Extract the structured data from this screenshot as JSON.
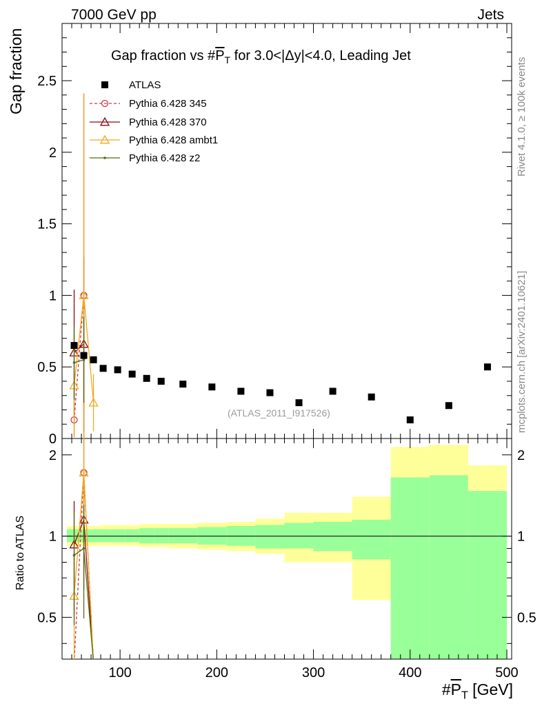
{
  "header": {
    "left_label": "7000 GeV pp",
    "right_label": "Jets"
  },
  "side_labels": {
    "rivet": "Rivet 4.1.0, ≥ 100k events",
    "mcplots": "mcplots.cern.ch [arXiv:2401.10621]"
  },
  "chart_data": {
    "type": "scatter",
    "title": "Gap fraction vs #PT for 3.0<|Δy|<4.0, Leading Jet",
    "title_prefix": "Gap fraction vs #",
    "title_symbol": "P",
    "title_sub": "T",
    "title_suffix": " for 3.0<|Δy|<4.0, Leading Jet",
    "reference_label": "(ATLAS_2011_I917526)",
    "ylabel": "Gap fraction",
    "ratio_ylabel": "Ratio to ATLAS",
    "xlabel_prefix": "#",
    "xlabel_symbol": "P",
    "xlabel_sub": "T",
    "xlabel_suffix": " [GeV]",
    "xlim": [
      40,
      505
    ],
    "ylim": [
      0,
      2.9
    ],
    "ratio_ylim": [
      0.35,
      2.3
    ],
    "x_ticks": [
      100,
      200,
      300,
      400,
      500
    ],
    "x_tick_labels": [
      "100",
      "200",
      "300",
      "400",
      "500"
    ],
    "y_ticks": [
      0,
      0.5,
      1,
      1.5,
      2,
      2.5
    ],
    "y_tick_labels": [
      "0",
      "0.5",
      "1",
      "1.5",
      "2",
      "2.5"
    ],
    "ratio_ticks": [
      0.5,
      1,
      2
    ],
    "ratio_tick_labels": [
      "0.5",
      "1",
      "2"
    ],
    "legend": [
      "ATLAS",
      "Pythia 6.428 345",
      "Pythia 6.428 370",
      "Pythia 6.428 ambt1",
      "Pythia 6.428 z2"
    ],
    "data": {
      "name": "ATLAS",
      "x": [
        52.5,
        62.5,
        72.5,
        82.5,
        97.5,
        112.5,
        127.5,
        142.5,
        165,
        195,
        225,
        255,
        285,
        320,
        360,
        400,
        440,
        480
      ],
      "y": [
        0.65,
        0.58,
        0.55,
        0.49,
        0.48,
        0.45,
        0.42,
        0.4,
        0.38,
        0.36,
        0.33,
        0.32,
        0.25,
        0.33,
        0.29,
        0.13,
        0.23,
        0.5
      ],
      "bins": [
        [
          45,
          60
        ],
        [
          60,
          70
        ],
        [
          70,
          80
        ],
        [
          80,
          90
        ],
        [
          90,
          105
        ],
        [
          105,
          120
        ],
        [
          120,
          135
        ],
        [
          135,
          150
        ],
        [
          150,
          180
        ],
        [
          180,
          210
        ],
        [
          210,
          240
        ],
        [
          240,
          270
        ],
        [
          270,
          300
        ],
        [
          300,
          340
        ],
        [
          340,
          380
        ],
        [
          380,
          420
        ],
        [
          420,
          460
        ],
        [
          460,
          500
        ]
      ]
    },
    "ratio_band_inner": [
      [
        0.95,
        1.06
      ],
      [
        0.95,
        1.06
      ],
      [
        0.95,
        1.06
      ],
      [
        0.95,
        1.06
      ],
      [
        0.95,
        1.06
      ],
      [
        0.95,
        1.06
      ],
      [
        0.94,
        1.07
      ],
      [
        0.94,
        1.07
      ],
      [
        0.94,
        1.07
      ],
      [
        0.93,
        1.08
      ],
      [
        0.92,
        1.09
      ],
      [
        0.9,
        1.1
      ],
      [
        0.9,
        1.12
      ],
      [
        0.88,
        1.13
      ],
      [
        0.82,
        1.15
      ],
      [
        0.35,
        1.65
      ],
      [
        0.35,
        1.68
      ],
      [
        0.35,
        1.47
      ]
    ],
    "ratio_band_outer": [
      [
        0.92,
        1.09
      ],
      [
        0.92,
        1.09
      ],
      [
        0.92,
        1.09
      ],
      [
        0.92,
        1.1
      ],
      [
        0.92,
        1.1
      ],
      [
        0.92,
        1.1
      ],
      [
        0.91,
        1.11
      ],
      [
        0.91,
        1.11
      ],
      [
        0.9,
        1.11
      ],
      [
        0.89,
        1.12
      ],
      [
        0.88,
        1.13
      ],
      [
        0.86,
        1.16
      ],
      [
        0.8,
        1.22
      ],
      [
        0.8,
        1.22
      ],
      [
        0.58,
        1.4
      ],
      [
        0.35,
        2.14
      ],
      [
        0.35,
        2.18
      ],
      [
        0.62,
        1.83
      ]
    ],
    "series": [
      {
        "name": "Pythia 6.428 345",
        "color": "#c0394a",
        "marker": "circle",
        "dashed": true,
        "x": [
          52.5,
          62.5
        ],
        "y": [
          0.13,
          1.0
        ],
        "yerr": [
          0.12,
          1.41
        ],
        "ratio_x": [
          52.5,
          62.5,
          72.5
        ],
        "ratio_y": [
          0.2,
          1.72,
          0.0
        ]
      },
      {
        "name": "Pythia 6.428 370",
        "color": "#8b0a12",
        "marker": "triangle",
        "dashed": false,
        "x": [
          52.5,
          62.5
        ],
        "y": [
          0.6,
          0.66
        ],
        "yerr": [
          0.44,
          0.61
        ],
        "ratio_x": [
          52.5,
          62.5,
          72.5
        ],
        "ratio_y": [
          0.93,
          1.15,
          0.0
        ]
      },
      {
        "name": "Pythia 6.428 ambt1",
        "color": "#f2a91f",
        "marker": "triangle",
        "dashed": false,
        "x": [
          52.5,
          62.5,
          72.5
        ],
        "y": [
          0.37,
          1.0,
          0.25
        ],
        "yerr": [
          0.36,
          1.41,
          0.2
        ],
        "ratio_x": [
          52.5,
          62.5,
          72.5
        ],
        "ratio_y": [
          0.6,
          1.72,
          0.0
        ]
      },
      {
        "name": "Pythia 6.428 z2",
        "color": "#556b10",
        "marker": "dot",
        "dashed": false,
        "x": [
          52.5,
          62.5
        ],
        "y": [
          0.53,
          0.55
        ],
        "yerr": [
          0.26,
          0.3
        ],
        "ratio_x": [
          52.5,
          62.5,
          72.5
        ],
        "ratio_y": [
          0.85,
          0.9,
          0.0
        ]
      }
    ]
  }
}
